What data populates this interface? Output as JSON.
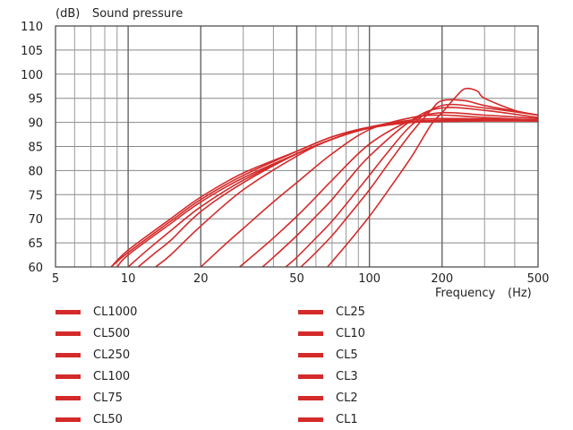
{
  "chart_data": {
    "type": "line",
    "title": "",
    "ylabel": "Sound pressure",
    "y_unit_label": "(dB)",
    "xlabel": "Frequency",
    "x_unit_label": "(Hz)",
    "x_scale": "log",
    "xlim": [
      5,
      500
    ],
    "ylim": [
      60,
      110
    ],
    "x_tick_labels": [
      "5",
      "10",
      "20",
      "50",
      "100",
      "200",
      "500"
    ],
    "y_tick_labels": [
      "60",
      "65",
      "70",
      "75",
      "80",
      "85",
      "90",
      "95",
      "100",
      "105",
      "110"
    ],
    "grid": true,
    "line_color": "#d42a2a",
    "legend_position": "below",
    "series": [
      {
        "name": "CL1000",
        "x": [
          8.5,
          10,
          15,
          20,
          30,
          50,
          70,
          100,
          150,
          200,
          300,
          500
        ],
        "y": [
          60,
          63.5,
          70,
          74.5,
          79.5,
          84,
          87,
          89,
          90,
          90.2,
          90.3,
          90.3
        ]
      },
      {
        "name": "CL500",
        "x": [
          8.5,
          10,
          15,
          20,
          30,
          50,
          70,
          100,
          150,
          200,
          300,
          500
        ],
        "y": [
          60,
          63,
          69.5,
          74,
          79,
          84,
          87,
          89,
          90,
          90.2,
          90.3,
          90.3
        ]
      },
      {
        "name": "CL250",
        "x": [
          9,
          10,
          15,
          20,
          30,
          50,
          70,
          100,
          150,
          200,
          300,
          500
        ],
        "y": [
          60,
          62.5,
          69,
          73.5,
          78.5,
          83.5,
          86.5,
          88.8,
          90,
          90.3,
          90.4,
          90.3
        ]
      },
      {
        "name": "CL100",
        "x": [
          10,
          12,
          15,
          20,
          30,
          50,
          70,
          100,
          150,
          200,
          300,
          500
        ],
        "y": [
          60,
          63.5,
          67.5,
          72.5,
          78,
          83.5,
          86.5,
          89,
          90,
          90.3,
          90.4,
          90.3
        ]
      },
      {
        "name": "CL75",
        "x": [
          11,
          13,
          15,
          20,
          30,
          50,
          70,
          100,
          150,
          200,
          300,
          500
        ],
        "y": [
          60,
          63,
          65.5,
          71.5,
          77.5,
          83.5,
          86.5,
          89,
          90.2,
          90.5,
          90.5,
          90.3
        ]
      },
      {
        "name": "CL50",
        "x": [
          13,
          15,
          20,
          30,
          50,
          70,
          100,
          150,
          200,
          300,
          500
        ],
        "y": [
          60,
          62.5,
          68.5,
          76,
          83,
          86.5,
          89,
          90.5,
          90.8,
          90.7,
          90.4
        ]
      },
      {
        "name": "CL25",
        "x": [
          20,
          25,
          30,
          40,
          50,
          70,
          100,
          150,
          200,
          300,
          500
        ],
        "y": [
          60,
          64.5,
          68,
          73.5,
          77.5,
          83.5,
          88.5,
          91,
          91.5,
          91,
          90.5
        ]
      },
      {
        "name": "CL10",
        "x": [
          29,
          35,
          40,
          50,
          60,
          70,
          100,
          150,
          200,
          300,
          500
        ],
        "y": [
          60,
          63.5,
          66,
          70.5,
          74.5,
          78,
          85.5,
          90.5,
          92,
          91.5,
          90.8
        ]
      },
      {
        "name": "CL5",
        "x": [
          36,
          40,
          50,
          60,
          70,
          80,
          100,
          150,
          200,
          300,
          500
        ],
        "y": [
          60,
          62,
          66.5,
          70.5,
          74,
          77.5,
          83,
          90.5,
          93,
          92.5,
          91
        ]
      },
      {
        "name": "CL3",
        "x": [
          45,
          50,
          60,
          70,
          80,
          100,
          120,
          150,
          200,
          300,
          500
        ],
        "y": [
          60,
          62,
          66,
          69.5,
          73,
          79,
          84,
          89.5,
          93.5,
          93,
          91.5
        ]
      },
      {
        "name": "CL2",
        "x": [
          52,
          60,
          70,
          80,
          100,
          120,
          150,
          180,
          200,
          250,
          300,
          500
        ],
        "y": [
          60,
          63,
          66.5,
          70,
          76,
          81.5,
          88,
          92.5,
          94.5,
          94.5,
          93.5,
          91.5
        ]
      },
      {
        "name": "CL1",
        "x": [
          67,
          80,
          100,
          120,
          150,
          180,
          200,
          230,
          250,
          280,
          300,
          400,
          500
        ],
        "y": [
          60,
          64.5,
          70.5,
          76,
          83,
          89.5,
          92,
          95.5,
          97,
          96.5,
          95,
          92.5,
          91.5
        ]
      }
    ]
  }
}
